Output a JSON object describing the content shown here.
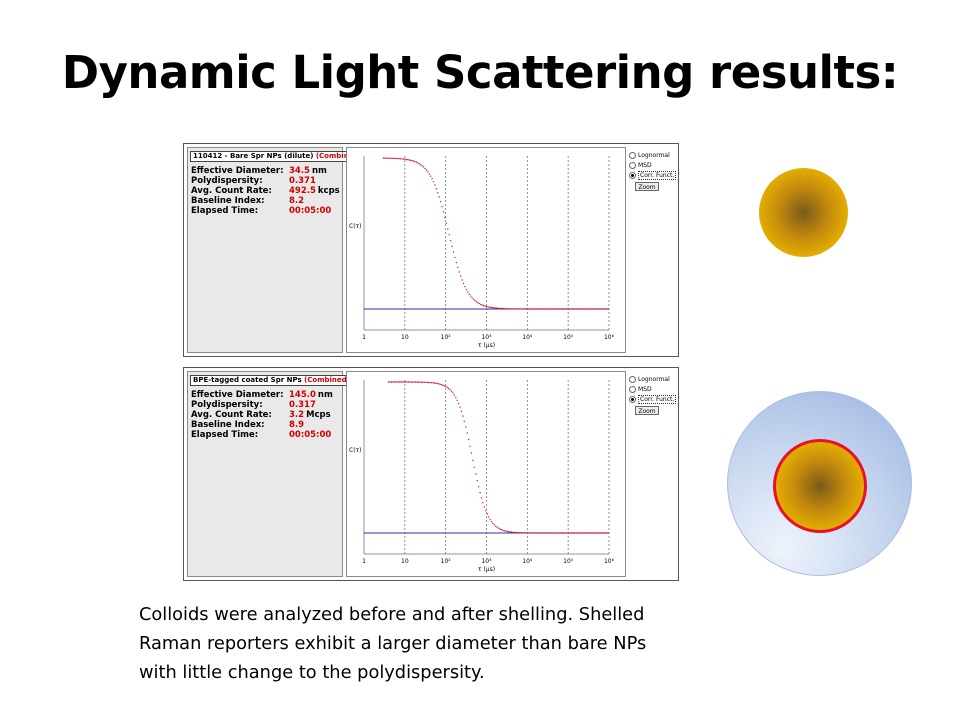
{
  "slide": {
    "title": "Dynamic Light Scattering results:",
    "caption_lines": [
      "Colloids were analyzed before and after shelling. Shelled",
      "Raman reporters exhibit a larger diameter than bare NPs",
      "with little change to the polydispersity."
    ]
  },
  "controls": {
    "options": [
      "Lognormal",
      "MSD",
      "Corr. Funct."
    ],
    "selected": "Corr. Funct.",
    "zoom_label": "Zoom"
  },
  "colors": {
    "curve": "#c8202a",
    "baseline": "#3030a0",
    "gold_core": "#ecb800",
    "shell": "#b7cbec",
    "core_outline": "#e8102a"
  },
  "chart_data": [
    {
      "type": "scatter",
      "sample": "110412 - Bare Spr NPs (dilute)",
      "tag": "(Combined)",
      "stats": [
        {
          "label": "Effective Diameter:",
          "value": "34.5",
          "unit": "nm"
        },
        {
          "label": "Polydispersity:",
          "value": "0.371",
          "unit": ""
        },
        {
          "label": "Avg. Count Rate:",
          "value": "492.5",
          "unit": "kcps"
        },
        {
          "label": "Baseline Index:",
          "value": "8.2",
          "unit": ""
        },
        {
          "label": "Elapsed Time:",
          "value": "00:05:00",
          "unit": ""
        }
      ],
      "ylabel": "C(τ)",
      "xlabel": "τ (µs)",
      "xscale": "log",
      "xlim": [
        1,
        1000000
      ],
      "x_ticks": [
        "1",
        "10",
        "10²",
        "10³",
        "10⁴",
        "10⁵",
        "10⁶"
      ],
      "gridlines": "vertical dashed at each decade",
      "decay_tau_us": 120,
      "decay_width": 0.9,
      "start_tau_us": 3
    },
    {
      "type": "scatter",
      "sample": "BPE-tagged coated Spr NPs",
      "tag": "(Combined)",
      "stats": [
        {
          "label": "Effective Diameter:",
          "value": "145.0",
          "unit": "nm"
        },
        {
          "label": "Polydispersity:",
          "value": "0.317",
          "unit": ""
        },
        {
          "label": "Avg. Count Rate:",
          "value": "3.2",
          "unit": "Mcps"
        },
        {
          "label": "Baseline Index:",
          "value": "8.9",
          "unit": ""
        },
        {
          "label": "Elapsed Time:",
          "value": "00:05:00",
          "unit": ""
        }
      ],
      "ylabel": "C(τ)",
      "xlabel": "τ (µs)",
      "xscale": "log",
      "xlim": [
        1,
        1000000
      ],
      "x_ticks": [
        "1",
        "10",
        "10²",
        "10³",
        "10⁴",
        "10⁵",
        "10⁶"
      ],
      "gridlines": "vertical dashed at each decade",
      "decay_tau_us": 450,
      "decay_width": 0.75,
      "start_tau_us": 4
    }
  ]
}
